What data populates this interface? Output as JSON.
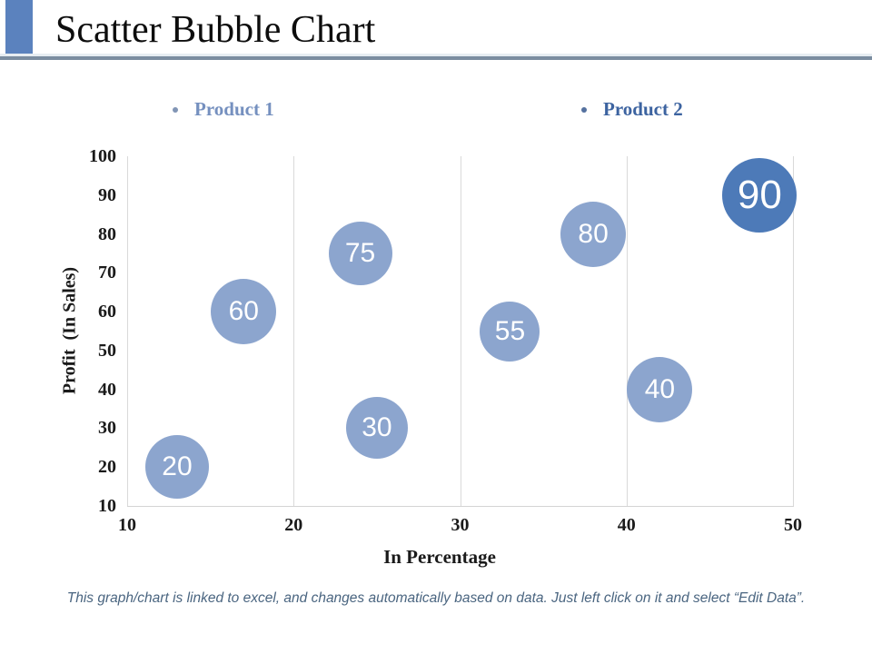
{
  "header": {
    "title": "Scatter Bubble Chart"
  },
  "legend": {
    "items": [
      {
        "label": "Product 1",
        "text_color": "#7590BF",
        "bullet_color": "#8195B5"
      },
      {
        "label": "Product 2",
        "text_color": "#3C63A0",
        "bullet_color": "#55719F"
      }
    ]
  },
  "chart_data": {
    "type": "scatter",
    "subtype": "bubble",
    "title": "",
    "xlabel": "In Percentage",
    "ylabel": "Profit  (In Sales)",
    "xlim": [
      10,
      50
    ],
    "ylim": [
      10,
      100
    ],
    "x_ticks": [
      10,
      20,
      30,
      40,
      50
    ],
    "y_ticks": [
      10,
      20,
      30,
      40,
      50,
      60,
      70,
      80,
      90,
      100
    ],
    "grid": "vertical-only",
    "gridline_color": "#D9D9D9",
    "legend_position": "top",
    "series": [
      {
        "name": "Product 1",
        "color": "#8CA5CE",
        "label_color": "#FFFFFF",
        "points": [
          {
            "x": 13,
            "y": 20,
            "label": "20",
            "r": 35
          },
          {
            "x": 17,
            "y": 60,
            "label": "60",
            "r": 36
          },
          {
            "x": 24,
            "y": 75,
            "label": "75",
            "r": 35
          },
          {
            "x": 25,
            "y": 30,
            "label": "30",
            "r": 34
          },
          {
            "x": 33,
            "y": 55,
            "label": "55",
            "r": 33
          },
          {
            "x": 38,
            "y": 80,
            "label": "80",
            "r": 36
          },
          {
            "x": 42,
            "y": 40,
            "label": "40",
            "r": 36
          }
        ]
      },
      {
        "name": "Product 2",
        "color": "#4D7AB8",
        "label_color": "#FFFFFF",
        "points": [
          {
            "x": 48,
            "y": 90,
            "label": "90",
            "r": 41
          }
        ]
      }
    ]
  },
  "footer": {
    "note": "This graph/chart is linked to excel, and changes automatically based on data. Just left click on it and select “Edit Data”."
  }
}
